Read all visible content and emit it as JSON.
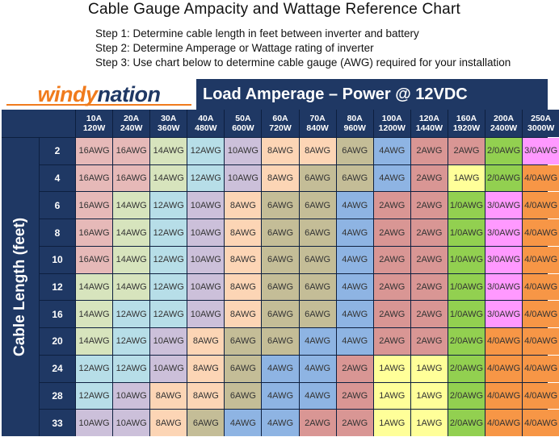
{
  "title": "Cable Gauge Ampacity and Wattage Reference Chart",
  "steps": [
    "Step 1: Determine cable length in feet between inverter and battery",
    "Step 2: Determine Amperage or Wattage rating of inverter",
    "Step 3: Use chart below to determine cable gauge (AWG) required for your installation"
  ],
  "logo": {
    "part1": "windy",
    "part2": "nation"
  },
  "header": "Load Amperage – Power @ 12VDC",
  "side_label": "Cable Length (feet)",
  "columns": [
    {
      "amp": "10A",
      "watt": "120W"
    },
    {
      "amp": "20A",
      "watt": "240W"
    },
    {
      "amp": "30A",
      "watt": "360W"
    },
    {
      "amp": "40A",
      "watt": "480W"
    },
    {
      "amp": "50A",
      "watt": "600W"
    },
    {
      "amp": "60A",
      "watt": "720W"
    },
    {
      "amp": "70A",
      "watt": "840W"
    },
    {
      "amp": "80A",
      "watt": "960W"
    },
    {
      "amp": "100A",
      "watt": "1200W"
    },
    {
      "amp": "120A",
      "watt": "1440W"
    },
    {
      "amp": "160A",
      "watt": "1920W"
    },
    {
      "amp": "200A",
      "watt": "2400W"
    },
    {
      "amp": "250A",
      "watt": "3000W"
    }
  ],
  "lengths": [
    "2",
    "4",
    "6",
    "8",
    "10",
    "12",
    "16",
    "20",
    "24",
    "28",
    "33"
  ],
  "rows": [
    [
      "16AWG",
      "16AWG",
      "14AWG",
      "12AWG",
      "10AWG",
      "8AWG",
      "8AWG",
      "6AWG",
      "4AWG",
      "2AWG",
      "2AWG",
      "2/0AWG",
      "3/0AWG"
    ],
    [
      "16AWG",
      "16AWG",
      "14AWG",
      "12AWG",
      "10AWG",
      "8AWG",
      "6AWG",
      "6AWG",
      "4AWG",
      "2AWG",
      "1AWG",
      "2/0AWG",
      "4/0AWG"
    ],
    [
      "16AWG",
      "14AWG",
      "12AWG",
      "10AWG",
      "8AWG",
      "6AWG",
      "6AWG",
      "4AWG",
      "2AWG",
      "2AWG",
      "1/0AWG",
      "3/0AWG",
      "4/0AWG"
    ],
    [
      "16AWG",
      "14AWG",
      "12AWG",
      "10AWG",
      "8AWG",
      "6AWG",
      "6AWG",
      "4AWG",
      "2AWG",
      "2AWG",
      "1/0AWG",
      "3/0AWG",
      "4/0AWG"
    ],
    [
      "16AWG",
      "14AWG",
      "12AWG",
      "10AWG",
      "8AWG",
      "6AWG",
      "6AWG",
      "4AWG",
      "2AWG",
      "2AWG",
      "1/0AWG",
      "3/0AWG",
      "4/0AWG"
    ],
    [
      "14AWG",
      "14AWG",
      "12AWG",
      "10AWG",
      "8AWG",
      "6AWG",
      "6AWG",
      "4AWG",
      "2AWG",
      "2AWG",
      "1/0AWG",
      "3/0AWG",
      "4/0AWG"
    ],
    [
      "14AWG",
      "12AWG",
      "12AWG",
      "10AWG",
      "8AWG",
      "6AWG",
      "6AWG",
      "4AWG",
      "2AWG",
      "2AWG",
      "1/0AWG",
      "3/0AWG",
      "4/0AWG"
    ],
    [
      "14AWG",
      "12AWG",
      "10AWG",
      "8AWG",
      "6AWG",
      "6AWG",
      "4AWG",
      "4AWG",
      "2AWG",
      "2AWG",
      "2/0AWG",
      "4/0AWG",
      "4/0AWG"
    ],
    [
      "12AWG",
      "12AWG",
      "10AWG",
      "8AWG",
      "6AWG",
      "4AWG",
      "4AWG",
      "2AWG",
      "1AWG",
      "1AWG",
      "2/0AWG",
      "4/0AWG",
      "4/0AWG"
    ],
    [
      "12AWG",
      "10AWG",
      "8AWG",
      "8AWG",
      "6AWG",
      "4AWG",
      "4AWG",
      "2AWG",
      "1AWG",
      "1AWG",
      "2/0AWG",
      "4/0AWG",
      "4/0AWG"
    ],
    [
      "10AWG",
      "10AWG",
      "8AWG",
      "6AWG",
      "4AWG",
      "4AWG",
      "2AWG",
      "2AWG",
      "1AWG",
      "1AWG",
      "2/0AWG",
      "4/0AWG",
      "4/0AWG"
    ]
  ],
  "gauge_colors": {
    "16AWG": "#e6b9b8",
    "14AWG": "#d7e4bd",
    "12AWG": "#b7dee8",
    "10AWG": "#ccc0da",
    "8AWG": "#fcd5b5",
    "6AWG": "#c4bd97",
    "4AWG": "#8eb4e3",
    "2AWG": "#d99694",
    "1AWG": "#ffff99",
    "1/0AWG": "#92d050",
    "2/0AWG": "#92d050",
    "3/0AWG": "#ff99ff",
    "4/0AWG": "#f79646"
  }
}
